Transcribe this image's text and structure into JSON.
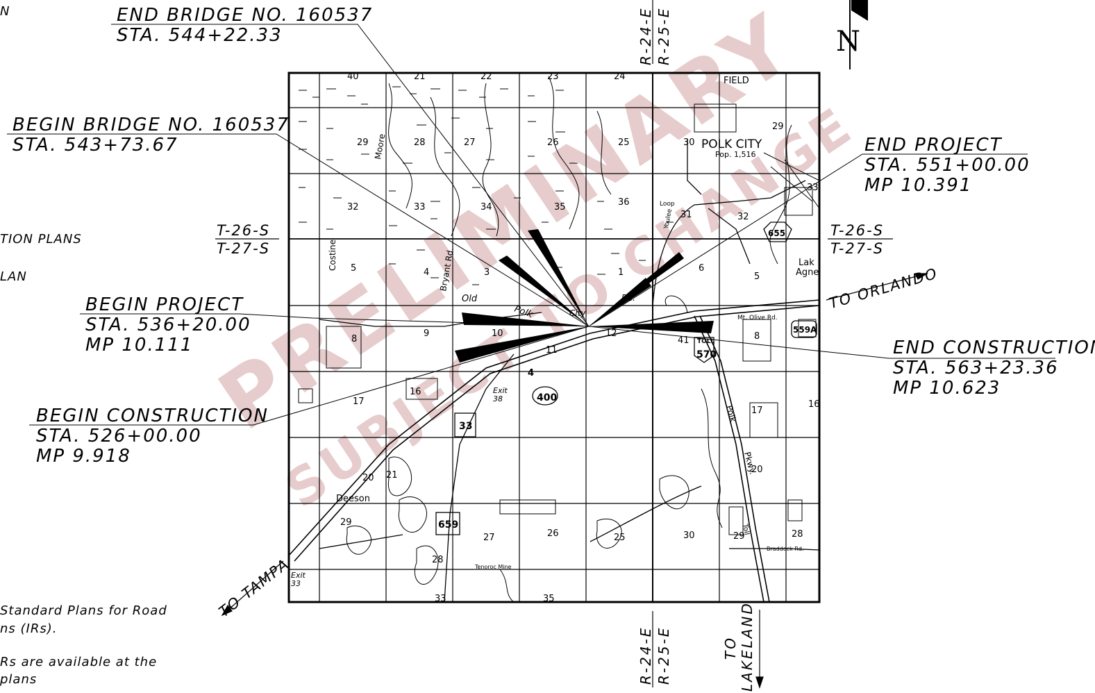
{
  "callouts": {
    "end_bridge_title": "END BRIDGE NO. 160537",
    "end_bridge_sta": "STA. 544+22.33",
    "begin_bridge_title": "BEGIN BRIDGE NO. 160537",
    "begin_bridge_sta": "STA. 543+73.67",
    "begin_project_title": "BEGIN PROJECT",
    "begin_project_sta": "STA. 536+20.00",
    "begin_project_mp": "MP 10.111",
    "begin_construction_title": "BEGIN CONSTRUCTION",
    "begin_construction_sta": "STA. 526+00.00",
    "begin_construction_mp": "MP 9.918",
    "end_project_title": "END PROJECT",
    "end_project_sta": "STA. 551+00.00",
    "end_project_mp": "MP 10.391",
    "end_construction_title": "END CONSTRUCTION",
    "end_construction_sta": "STA. 563+23.36",
    "end_construction_mp": "MP 10.623"
  },
  "grid_labels": {
    "township_top": "T-26-S",
    "township_bottom": "T-27-S",
    "range_left": "R-24-E",
    "range_right": "R-25-E"
  },
  "directions": {
    "to_orlando": "TO ORLANDO",
    "to_tampa": "TO TAMPA",
    "to_lakeland_line1": "TO",
    "to_lakeland_line2": "LAKELAND",
    "north": "N"
  },
  "left_notes": {
    "n_fragment": "N",
    "plans_fragment": "TION PLANS",
    "lan_fragment": "LAN",
    "std_line1": "Standard Plans for Road",
    "std_line2": "ns (IRs).",
    "irs_line1": "Rs are available at the",
    "irs_line2": "plans"
  },
  "watermark": {
    "line1": "PRELIMINARY",
    "line2": "SUBJECT TO CHANGE"
  },
  "map": {
    "place_polk_city": "POLK CITY",
    "polk_city_pop": "Pop. 1,516",
    "place_field": "FIELD",
    "place_deeson": "Deeson",
    "place_lake_agnes": "Lak",
    "place_agnes": "Agne",
    "road_old_polk": "Old",
    "road_polk": "Polk",
    "road_city": "City",
    "road_rd": "Rd.",
    "road_moore": "Moore",
    "road_bryant": "Bryant Rd.",
    "road_costine": "Costine",
    "road_mt_olive": "Mt. Olive Rd.",
    "road_polk_pkwy": "Polk",
    "road_pkwy": "Pkwy.",
    "road_tenoroc": "Tenoroc Mine",
    "road_braddock": "Braddock Rd.",
    "road_toll": "Toll",
    "road_loop": "Loop",
    "road_youlee": "Youlee",
    "exit_38": "Exit",
    "exit_38_num": "38",
    "exit_33": "Exit",
    "exit_33_num": "33",
    "shield_400": "400",
    "shield_33": "33",
    "shield_659": "659",
    "shield_655": "655",
    "shield_559a": "559A",
    "shield_570": "570",
    "shield_toll": "TOLL",
    "shield_4": "4",
    "section_numbers_top": [
      "40",
      "21",
      "22",
      "23",
      "24"
    ],
    "section_numbers": [
      {
        "n": "29"
      },
      {
        "n": "28"
      },
      {
        "n": "27"
      },
      {
        "n": "26"
      },
      {
        "n": "25"
      },
      {
        "n": "30"
      },
      {
        "n": "29"
      },
      {
        "n": "32"
      },
      {
        "n": "33"
      },
      {
        "n": "34"
      },
      {
        "n": "35"
      },
      {
        "n": "36"
      },
      {
        "n": "31"
      },
      {
        "n": "32"
      },
      {
        "n": "33"
      },
      {
        "n": "5"
      },
      {
        "n": "4"
      },
      {
        "n": "3"
      },
      {
        "n": "1"
      },
      {
        "n": "6"
      },
      {
        "n": "5"
      },
      {
        "n": "8"
      },
      {
        "n": "9"
      },
      {
        "n": "10"
      },
      {
        "n": "11"
      },
      {
        "n": "12"
      },
      {
        "n": "41"
      },
      {
        "n": "8"
      },
      {
        "n": "17"
      },
      {
        "n": "16"
      },
      {
        "n": "17"
      },
      {
        "n": "16"
      },
      {
        "n": "20"
      },
      {
        "n": "21"
      },
      {
        "n": "20"
      },
      {
        "n": "29"
      },
      {
        "n": "28"
      },
      {
        "n": "27"
      },
      {
        "n": "26"
      },
      {
        "n": "25"
      },
      {
        "n": "30"
      },
      {
        "n": "29"
      },
      {
        "n": "28"
      },
      {
        "n": "33"
      },
      {
        "n": "35"
      }
    ]
  }
}
